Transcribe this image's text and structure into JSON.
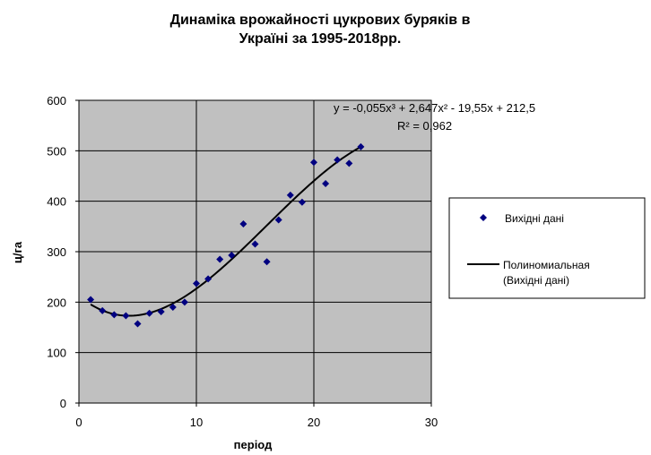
{
  "chart_data": {
    "type": "scatter",
    "title": [
      "Динаміка врожайності цукрових буряків в",
      "Україні за 1995-2018рр."
    ],
    "xlabel": "період",
    "ylabel": "ц/га",
    "xlim": [
      0,
      30
    ],
    "ylim": [
      0,
      600
    ],
    "xticks": [
      0,
      10,
      20,
      30
    ],
    "yticks": [
      0,
      100,
      200,
      300,
      400,
      500,
      600
    ],
    "grid": true,
    "plot_background": "#c0c0c0",
    "point_color": "#000080",
    "trend_color": "#000000",
    "series": [
      {
        "name": "Вихідні дані",
        "x": [
          1,
          2,
          3,
          4,
          5,
          6,
          7,
          8,
          9,
          10,
          11,
          12,
          13,
          14,
          15,
          16,
          17,
          18,
          19,
          20,
          21,
          22,
          23,
          24
        ],
        "y": [
          205,
          183,
          175,
          173,
          157,
          178,
          181,
          190,
          200,
          237,
          246,
          285,
          293,
          355,
          315,
          280,
          363,
          412,
          398,
          477,
          435,
          482,
          475,
          508
        ]
      }
    ],
    "trendline": {
      "type": "polynomial",
      "name": [
        "Полиномиальная",
        "(Вихідні дані)"
      ],
      "coefficients": [
        -0.055,
        2.647,
        -19.55,
        212.5
      ],
      "x_range": [
        1,
        24
      ],
      "equation": "y = -0,055x³ + 2,647x² - 19,55x + 212,5",
      "r_squared": "R² = 0,962"
    },
    "legend": {
      "position": "right"
    }
  }
}
